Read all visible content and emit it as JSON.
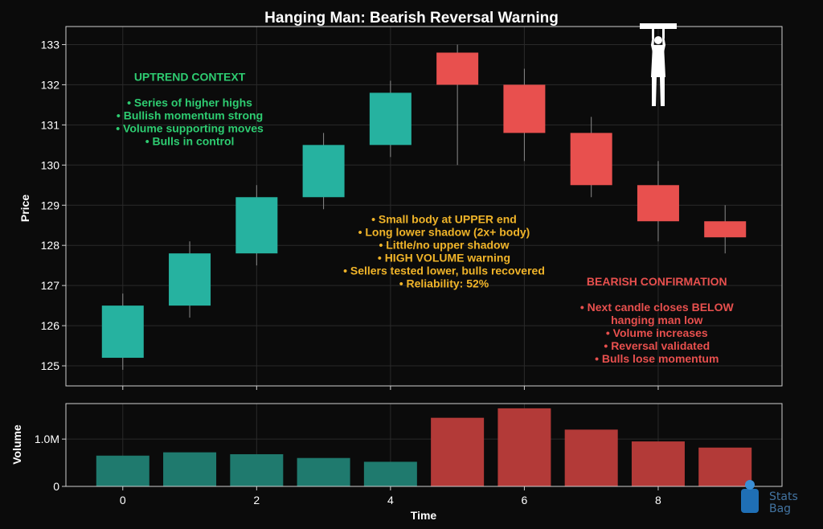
{
  "colors": {
    "background": "#0b0b0b",
    "bullish": "#26b2a0",
    "bearish": "#e8504e",
    "bullish_volume": "#1f7a6e",
    "bearish_volume": "#b33a38",
    "grid": "#2a2a2a",
    "axis": "#cfcfcf",
    "text": "#ffffff",
    "annotation_green": "#2ecc71",
    "annotation_amber": "#f0b429",
    "annotation_red": "#e8504e"
  },
  "watermark": {
    "line1": "Stats",
    "line2": "Bag"
  },
  "chart_data": [
    {
      "type": "candlestick",
      "title": "Hanging Man: Bearish Reversal Warning",
      "ylabel": "Price",
      "xlim": [
        -0.85,
        9.85
      ],
      "ylim": [
        124.5,
        133.45
      ],
      "yticks": [
        125,
        126,
        127,
        128,
        129,
        130,
        131,
        132,
        133
      ],
      "grid": true,
      "candles": [
        {
          "x": 0,
          "open": 125.2,
          "high": 126.8,
          "low": 124.9,
          "close": 126.5
        },
        {
          "x": 1,
          "open": 126.5,
          "high": 128.1,
          "low": 126.2,
          "close": 127.8
        },
        {
          "x": 2,
          "open": 127.8,
          "high": 129.5,
          "low": 127.5,
          "close": 129.2
        },
        {
          "x": 3,
          "open": 129.2,
          "high": 130.8,
          "low": 128.9,
          "close": 130.5
        },
        {
          "x": 4,
          "open": 130.5,
          "high": 132.1,
          "low": 130.2,
          "close": 131.8
        },
        {
          "x": 5,
          "open": 132.8,
          "high": 133.0,
          "low": 130.0,
          "close": 132.0
        },
        {
          "x": 6,
          "open": 132.0,
          "high": 132.4,
          "low": 130.1,
          "close": 130.8
        },
        {
          "x": 7,
          "open": 130.8,
          "high": 131.2,
          "low": 129.2,
          "close": 129.5
        },
        {
          "x": 8,
          "open": 129.5,
          "high": 130.1,
          "low": 128.1,
          "close": 128.6
        },
        {
          "x": 9,
          "open": 128.6,
          "high": 129.0,
          "low": 127.8,
          "close": 128.2
        }
      ],
      "annotations": [
        {
          "id": "uptrend",
          "color": "green",
          "lines": [
            "UPTREND CONTEXT",
            "",
            "• Series of higher highs",
            "• Bullish momentum strong",
            "• Volume supporting moves",
            "• Bulls in control"
          ]
        },
        {
          "id": "hanging",
          "color": "amber",
          "lines": [
            "• Small body at UPPER end",
            "• Long lower shadow (2x+ body)",
            "• Little/no upper shadow",
            "• HIGH VOLUME warning",
            "• Sellers tested lower, bulls recovered",
            "• Reliability: 52%"
          ]
        },
        {
          "id": "confirm",
          "color": "red",
          "lines": [
            "BEARISH CONFIRMATION",
            "",
            "• Next candle closes BELOW",
            "hanging man low",
            "• Volume increases",
            "• Reversal validated",
            "• Bulls lose momentum"
          ]
        }
      ]
    },
    {
      "type": "bar",
      "xlabel": "Time",
      "ylabel": "Volume",
      "x": [
        0,
        1,
        2,
        3,
        4,
        5,
        6,
        7,
        8,
        9
      ],
      "values": [
        650000,
        720000,
        680000,
        600000,
        520000,
        1450000,
        1650000,
        1200000,
        950000,
        820000
      ],
      "ylim": [
        0,
        1750000
      ],
      "yticks": [
        0,
        1000000
      ],
      "ytick_labels": [
        "0",
        "1.0M"
      ],
      "xticks": [
        0,
        2,
        4,
        6,
        8
      ],
      "xtick_labels": [
        "0",
        "2",
        "4",
        "6",
        "8"
      ],
      "grid": true
    }
  ]
}
